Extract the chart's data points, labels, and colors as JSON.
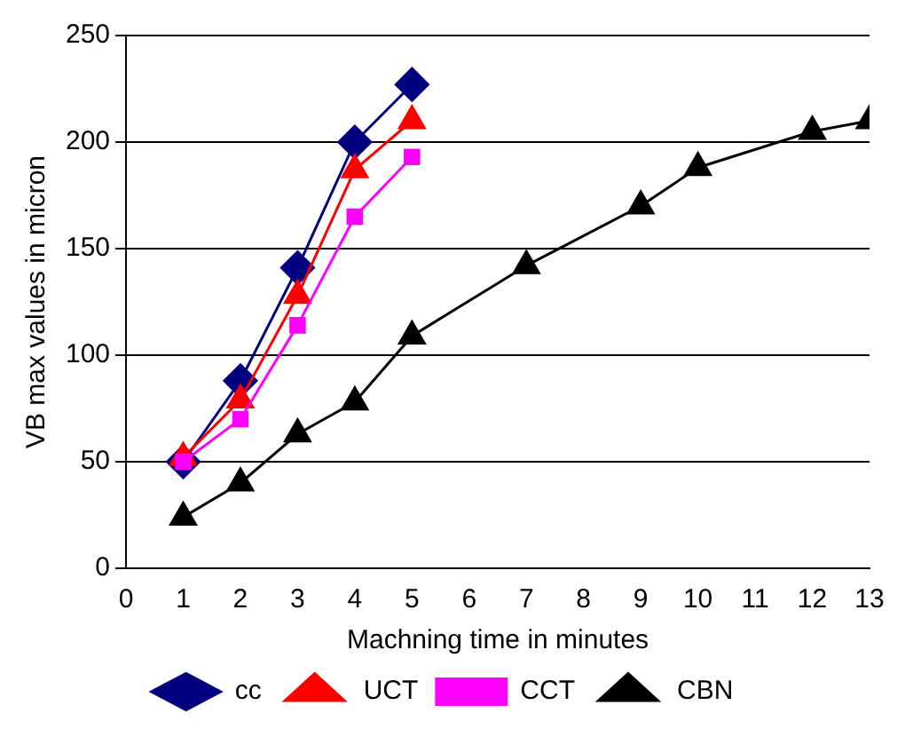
{
  "chart_data": {
    "type": "line",
    "xlabel": "Machning time in minutes",
    "ylabel": "VB max values in micron",
    "xlim": [
      0,
      13
    ],
    "xticks": [
      0,
      1,
      2,
      3,
      4,
      5,
      6,
      7,
      8,
      9,
      10,
      11,
      12,
      13
    ],
    "ylim": [
      0,
      250
    ],
    "yticks": [
      0,
      50,
      100,
      150,
      200,
      250
    ],
    "grid": "y",
    "legend": "bottom",
    "series": [
      {
        "name": "cc",
        "color": "#000080",
        "marker": "diamond",
        "x": [
          1,
          2,
          3,
          4,
          5
        ],
        "values": [
          50,
          88,
          141,
          200,
          227
        ]
      },
      {
        "name": "UCT",
        "color": "#ff0000",
        "marker": "triangle",
        "x": [
          1,
          2,
          3,
          4,
          5
        ],
        "values": [
          52,
          79,
          128,
          187,
          210
        ]
      },
      {
        "name": "CCT",
        "color": "#ff00ff",
        "marker": "square",
        "x": [
          1,
          2,
          3,
          4,
          5
        ],
        "values": [
          50,
          70,
          114,
          165,
          193
        ]
      },
      {
        "name": "CBN",
        "color": "#000000",
        "marker": "triangle",
        "x": [
          1,
          2,
          3,
          4,
          5,
          7,
          9,
          10,
          12,
          13
        ],
        "values": [
          24,
          40,
          63,
          78,
          109,
          142,
          170,
          188,
          205,
          210
        ]
      }
    ]
  }
}
